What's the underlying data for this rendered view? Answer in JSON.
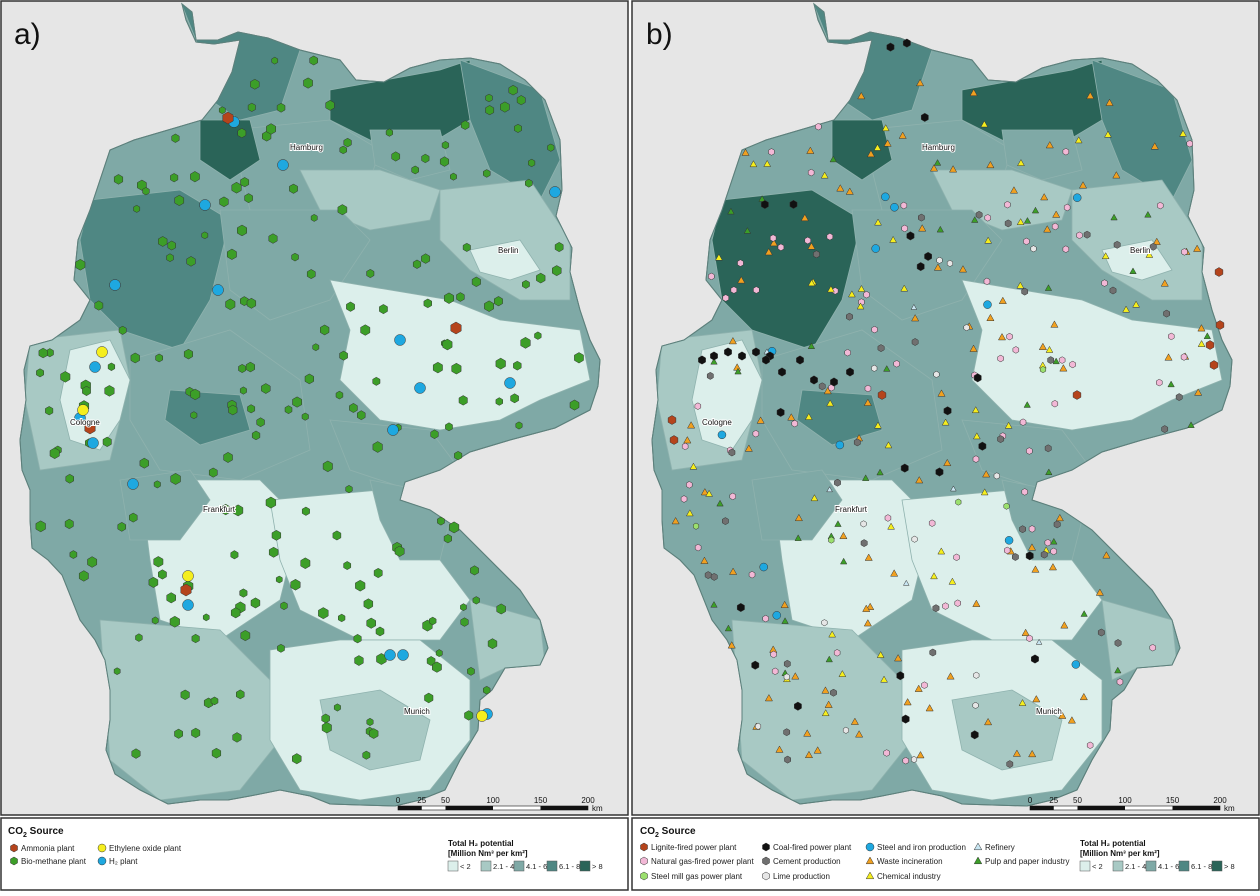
{
  "panels": [
    {
      "id": "a",
      "label": "a)",
      "cities": [
        "Hamburg",
        "Berlin",
        "Cologne",
        "Frankfurt",
        "Munich"
      ],
      "scale": {
        "ticks": [
          "0",
          "25",
          "50",
          "100",
          "150",
          "200"
        ],
        "unit": "km"
      },
      "legend": {
        "title_prefix": "CO",
        "title_sub": "2",
        "title_suffix": " Source",
        "items": [
          {
            "label": "Ammonia plant",
            "color": "#b5441c",
            "shape": "hex"
          },
          {
            "label": "Ethylene oxide plant",
            "color": "#f5ee1e",
            "shape": "circle"
          },
          {
            "label": "Bio-methane plant",
            "color": "#3c9e28",
            "shape": "hex"
          },
          {
            "label": "H₂ plant",
            "color": "#1ea8e0",
            "shape": "circle"
          }
        ],
        "potential_title": "Total H₂ potential",
        "potential_unit": "[Million Nm³ per km²]",
        "classes": [
          "< 2",
          "2.1 - 4",
          "4.1 - 6",
          "6.1 - 8",
          "> 8"
        ]
      }
    },
    {
      "id": "b",
      "label": "b)",
      "cities": [
        "Hamburg",
        "Berlin",
        "Cologne",
        "Frankfurt",
        "Munich"
      ],
      "scale": {
        "ticks": [
          "0",
          "25",
          "50",
          "100",
          "150",
          "200"
        ],
        "unit": "km"
      },
      "legend": {
        "title_prefix": "CO",
        "title_sub": "2",
        "title_suffix": " Source",
        "items": [
          {
            "label": "Lignite-fired power plant",
            "color": "#b5441c",
            "shape": "hex"
          },
          {
            "label": "Coal-fired power plant",
            "color": "#111111",
            "shape": "hex"
          },
          {
            "label": "Steel and iron production",
            "color": "#1ea8e0",
            "shape": "circle"
          },
          {
            "label": "Refinery",
            "color": "#c8e6f2",
            "shape": "triangle"
          },
          {
            "label": "Natural gas-fired power plant",
            "color": "#f2b8d6",
            "shape": "hex"
          },
          {
            "label": "Cement production",
            "color": "#707070",
            "shape": "hex"
          },
          {
            "label": "Waste incineration",
            "color": "#f0a020",
            "shape": "triangle"
          },
          {
            "label": "Pulp and paper industry",
            "color": "#3c9e28",
            "shape": "triangle"
          },
          {
            "label": "Steel mill gas power plant",
            "color": "#9be06e",
            "shape": "hex"
          },
          {
            "label": "Lime production",
            "color": "#e6e6e6",
            "shape": "hex"
          },
          {
            "label": "Chemical industry",
            "color": "#f5ee1e",
            "shape": "triangle"
          }
        ],
        "potential_title": "Total H₂ potential",
        "potential_unit": "[Million Nm³ per km²]",
        "classes": [
          "< 2",
          "2.1 - 4",
          "4.1 - 6",
          "6.1 - 8",
          "> 8"
        ]
      }
    }
  ],
  "class_colors": [
    "#dcefeb",
    "#a8c9c4",
    "#7fa9a6",
    "#4f8783",
    "#2a6458"
  ]
}
